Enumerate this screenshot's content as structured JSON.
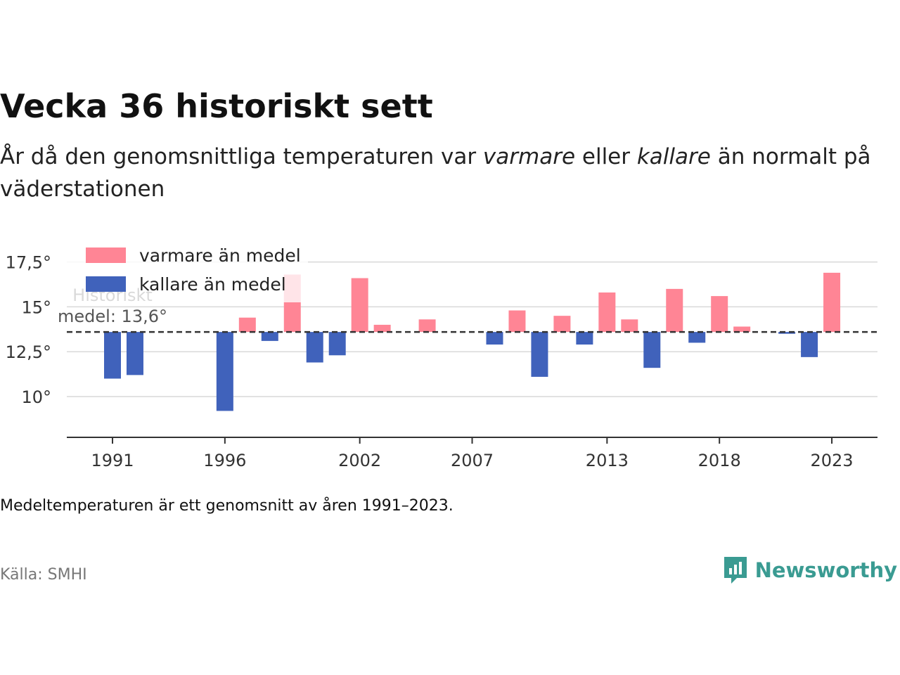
{
  "title": "Vecka 36 historiskt sett",
  "subtitle": {
    "part1": "År då den genomsnittliga temperaturen var ",
    "warm_word": "varmare",
    "part2": " eller ",
    "cold_word": "kallare",
    "part3": " än normalt på väderstationen"
  },
  "note": "Medeltemperaturen är ett genomsnitt av åren 1991–2023.",
  "source": "Källa: SMHI",
  "brand": {
    "name": "Newsworthy",
    "icon": "newsworthy-logo-icon",
    "color": "#3a9b92"
  },
  "colors": {
    "warm": "#ff8595",
    "cold": "#4062bb",
    "grid": "#d9d9d9",
    "baseline": "#333333"
  },
  "chart_data": {
    "type": "bar",
    "title": "Vecka 36 historiskt sett",
    "baseline": {
      "value": 13.6,
      "label_line1": "Historiskt",
      "label_line2": "medel: 13,6°"
    },
    "ylim": [
      8,
      17.5
    ],
    "yticks": [
      {
        "value": 17.5,
        "label": "17,5°"
      },
      {
        "value": 15,
        "label": "15°"
      },
      {
        "value": 12.5,
        "label": "12,5°"
      },
      {
        "value": 10,
        "label": "10°"
      }
    ],
    "xticks": [
      {
        "value": 1991,
        "label": "1991"
      },
      {
        "value": 1996,
        "label": "1996"
      },
      {
        "value": 2002,
        "label": "2002"
      },
      {
        "value": 2007,
        "label": "2007"
      },
      {
        "value": 2013,
        "label": "2013"
      },
      {
        "value": 2018,
        "label": "2018"
      },
      {
        "value": 2023,
        "label": "2023"
      }
    ],
    "legend": {
      "position": "top-left",
      "items": [
        {
          "label": "varmare än medel",
          "color": "#ff8595"
        },
        {
          "label": "kallare än medel",
          "color": "#4062bb"
        }
      ]
    },
    "grid": true,
    "series": [
      {
        "name": "varmare än medel",
        "x": [
          1997,
          1999,
          2002,
          2003,
          2005,
          2009,
          2011,
          2013,
          2014,
          2016,
          2018,
          2019,
          2023
        ],
        "values": [
          14.4,
          16.8,
          16.6,
          14.0,
          14.3,
          14.8,
          14.5,
          15.8,
          14.3,
          16.0,
          15.6,
          13.9,
          16.9
        ]
      },
      {
        "name": "kallare än medel",
        "x": [
          1991,
          1992,
          1996,
          1998,
          2000,
          2001,
          2008,
          2010,
          2012,
          2015,
          2017,
          2021,
          2022
        ],
        "values": [
          11.0,
          11.2,
          9.2,
          13.1,
          11.9,
          12.3,
          12.9,
          11.1,
          12.9,
          11.6,
          13.0,
          13.5,
          12.2
        ]
      }
    ]
  }
}
